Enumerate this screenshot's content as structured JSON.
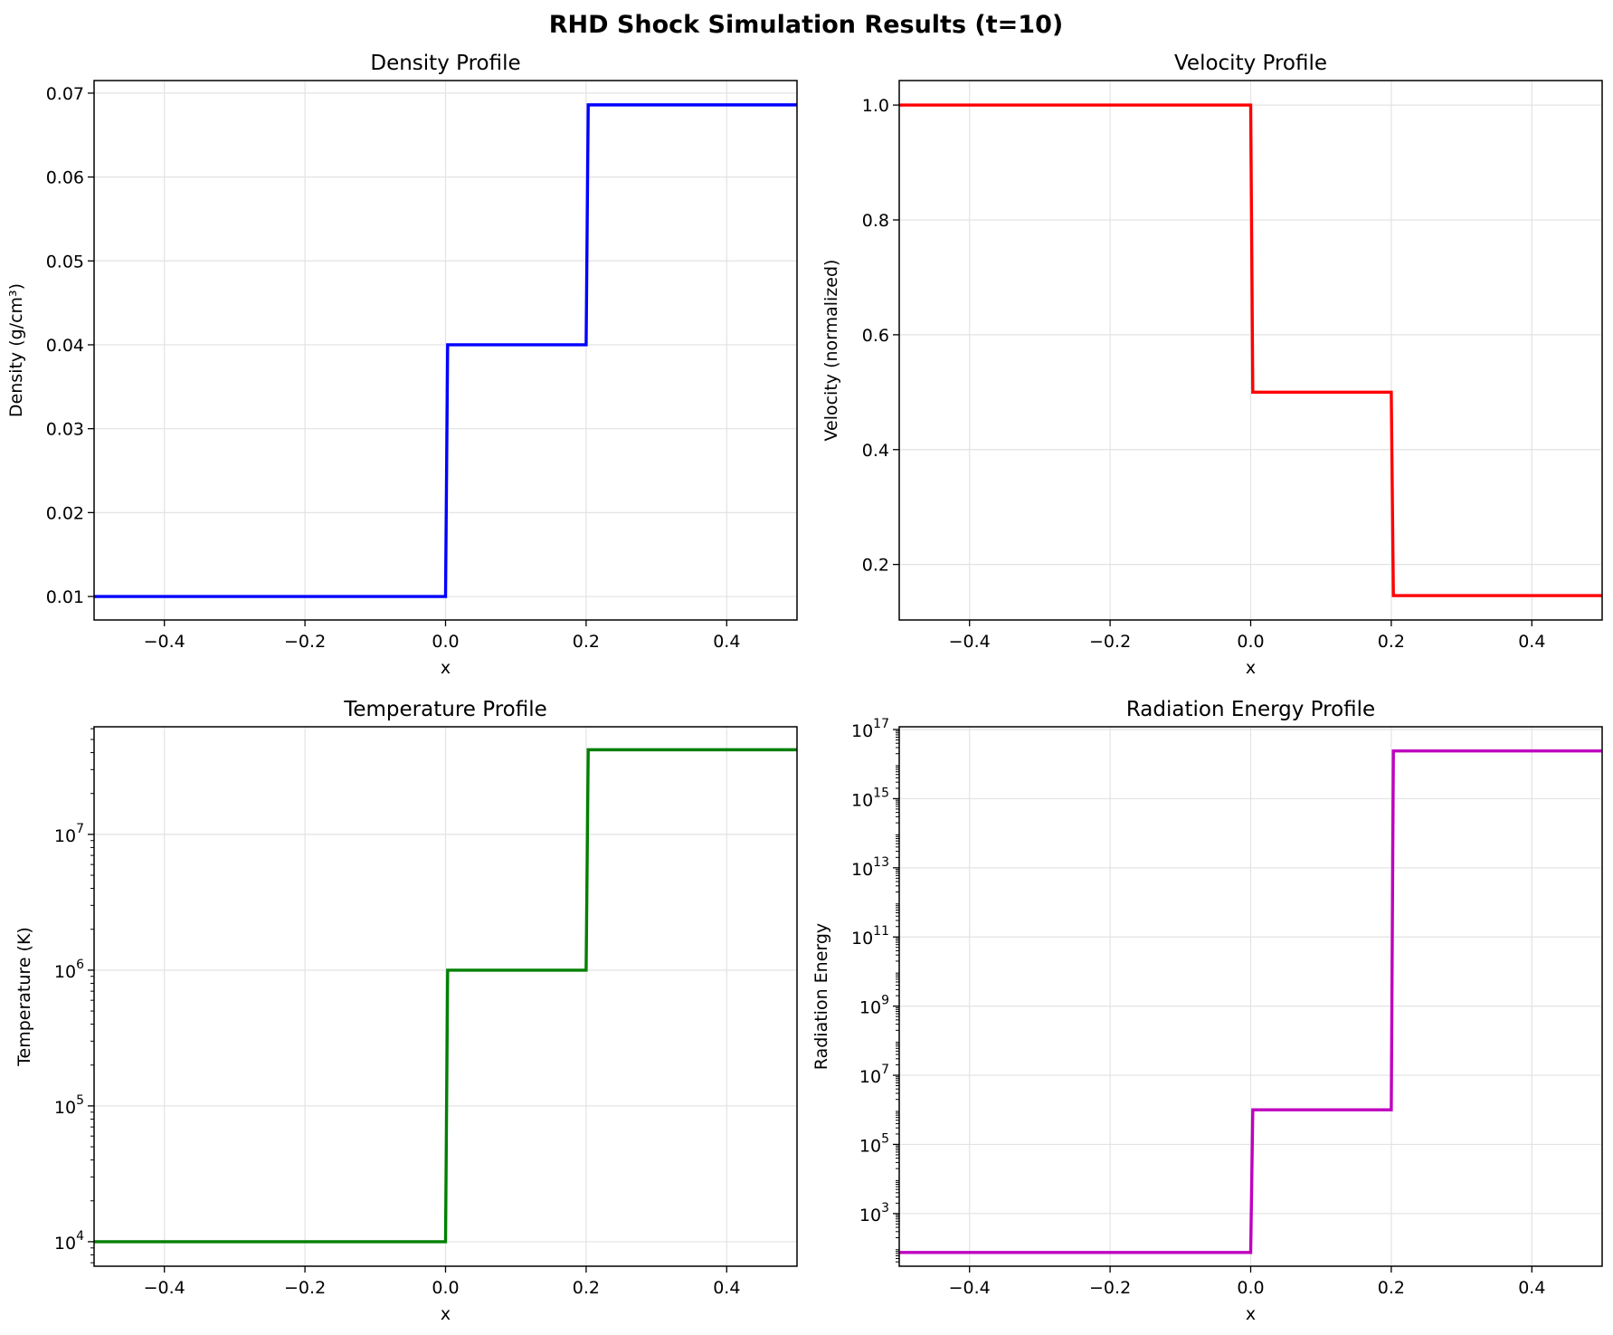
{
  "figure": {
    "suptitle": "RHD Shock Simulation Results (t=10)"
  },
  "chart_data": [
    {
      "type": "line",
      "title": "Density Profile",
      "xlabel": "x",
      "ylabel": "Density (g/cm³)",
      "color": "#0000ff",
      "xlim": [
        -0.5,
        0.5
      ],
      "ylim": [
        0.0072,
        0.0715
      ],
      "yscale": "linear",
      "grid": true,
      "xticks": [
        -0.4,
        -0.2,
        0.0,
        0.2,
        0.4
      ],
      "xtick_labels": [
        "−0.4",
        "−0.2",
        "0.0",
        "0.2",
        "0.4"
      ],
      "yticks": [
        0.01,
        0.02,
        0.03,
        0.04,
        0.05,
        0.06,
        0.07
      ],
      "ytick_labels": [
        "0.01",
        "0.02",
        "0.03",
        "0.04",
        "0.05",
        "0.06",
        "0.07"
      ],
      "x": [
        -0.5,
        0.0,
        0.003,
        0.2,
        0.203,
        0.5
      ],
      "y": [
        0.01,
        0.01,
        0.04,
        0.04,
        0.0686,
        0.0686
      ]
    },
    {
      "type": "line",
      "title": "Velocity Profile",
      "xlabel": "x",
      "ylabel": "Velocity (normalized)",
      "color": "#ff0000",
      "xlim": [
        -0.5,
        0.5
      ],
      "ylim": [
        0.1033,
        1.0427
      ],
      "yscale": "linear",
      "grid": true,
      "xticks": [
        -0.4,
        -0.2,
        0.0,
        0.2,
        0.4
      ],
      "xtick_labels": [
        "−0.4",
        "−0.2",
        "0.0",
        "0.2",
        "0.4"
      ],
      "yticks": [
        0.2,
        0.4,
        0.6,
        0.8,
        1.0
      ],
      "ytick_labels": [
        "0.2",
        "0.4",
        "0.6",
        "0.8",
        "1.0"
      ],
      "x": [
        -0.5,
        0.0,
        0.003,
        0.2,
        0.203,
        0.5
      ],
      "y": [
        1.0,
        1.0,
        0.5,
        0.5,
        0.1457,
        0.1457
      ]
    },
    {
      "type": "line",
      "title": "Temperature Profile",
      "xlabel": "x",
      "ylabel": "Temperature (K)",
      "color": "#008000",
      "xlim": [
        -0.5,
        0.5
      ],
      "ylim": [
        6600,
        62000000
      ],
      "yscale": "log",
      "grid": true,
      "xticks": [
        -0.4,
        -0.2,
        0.0,
        0.2,
        0.4
      ],
      "xtick_labels": [
        "−0.4",
        "−0.2",
        "0.0",
        "0.2",
        "0.4"
      ],
      "yticks": [
        10000,
        100000,
        1000000,
        10000000
      ],
      "ytick_labels": [
        {
          "base": "10",
          "exp": "4"
        },
        {
          "base": "10",
          "exp": "5"
        },
        {
          "base": "10",
          "exp": "6"
        },
        {
          "base": "10",
          "exp": "7"
        }
      ],
      "x": [
        -0.5,
        0.0,
        0.003,
        0.2,
        0.203,
        0.5
      ],
      "y": [
        10000,
        10000,
        1000000,
        1000000,
        42000000,
        42000000
      ]
    },
    {
      "type": "line",
      "title": "Radiation Energy Profile",
      "xlabel": "x",
      "ylabel": "Radiation Energy",
      "color": "#bf00bf",
      "xlim": [
        -0.5,
        0.5
      ],
      "ylim": [
        30,
        120000000000000000
      ],
      "yscale": "log",
      "grid": true,
      "xticks": [
        -0.4,
        -0.2,
        0.0,
        0.2,
        0.4
      ],
      "xtick_labels": [
        "−0.4",
        "−0.2",
        "0.0",
        "0.2",
        "0.4"
      ],
      "yticks": [
        1000,
        100000,
        10000000,
        1000000000,
        100000000000,
        10000000000000,
        1000000000000000,
        100000000000000000
      ],
      "ytick_labels": [
        {
          "base": "10",
          "exp": "3"
        },
        {
          "base": "10",
          "exp": "5"
        },
        {
          "base": "10",
          "exp": "7"
        },
        {
          "base": "10",
          "exp": "9"
        },
        {
          "base": "10",
          "exp": "11"
        },
        {
          "base": "10",
          "exp": "13"
        },
        {
          "base": "10",
          "exp": "15"
        },
        {
          "base": "10",
          "exp": "17"
        }
      ],
      "x": [
        -0.5,
        0.0,
        0.003,
        0.2,
        0.203,
        0.5
      ],
      "y": [
        75,
        75,
        1000000,
        1000000,
        24000000000000000,
        24000000000000000
      ]
    }
  ]
}
